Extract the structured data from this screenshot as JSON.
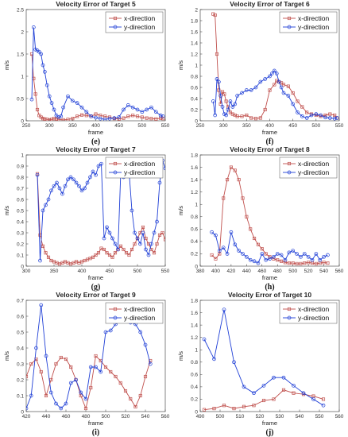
{
  "chart_data": [
    {
      "type": "line",
      "panel_label": "(e)",
      "title": "Velocity Error of Target 5",
      "xlabel": "frame",
      "ylabel": "m/s",
      "xlim": [
        250,
        550
      ],
      "ylim": [
        0,
        2.5
      ],
      "xticks": [
        250,
        300,
        350,
        400,
        450,
        500,
        550
      ],
      "yticks": [
        0,
        0.5,
        1,
        1.5,
        2,
        2.5
      ],
      "legend": "top-right",
      "series": [
        {
          "name": "x-direction",
          "color": "#c0504d",
          "marker": "square",
          "x": [
            262,
            266,
            270,
            274,
            278,
            282,
            286,
            290,
            295,
            300,
            305,
            310,
            315,
            320,
            330,
            340,
            350,
            360,
            370,
            380,
            390,
            400,
            410,
            420,
            430,
            440,
            450,
            460,
            470,
            480,
            490,
            500,
            510,
            520,
            530,
            540,
            545
          ],
          "y": [
            1.5,
            0.95,
            0.6,
            0.25,
            0.12,
            0.08,
            0.05,
            0.04,
            0.03,
            0.02,
            0.03,
            0.05,
            0.04,
            0.03,
            0.02,
            0.03,
            0.05,
            0.1,
            0.13,
            0.12,
            0.1,
            0.15,
            0.12,
            0.1,
            0.08,
            0.05,
            0.04,
            0.06,
            0.1,
            0.12,
            0.1,
            0.08,
            0.06,
            0.05,
            0.04,
            0.06,
            0.05
          ]
        },
        {
          "name": "y-direction",
          "color": "#1f3fd6",
          "marker": "circle",
          "x": [
            262,
            266,
            270,
            274,
            278,
            282,
            286,
            290,
            295,
            300,
            305,
            310,
            315,
            320,
            325,
            330,
            340,
            350,
            360,
            370,
            380,
            390,
            400,
            410,
            420,
            430,
            440,
            450,
            460,
            470,
            480,
            490,
            500,
            510,
            520,
            530,
            540,
            545
          ],
          "y": [
            0.48,
            2.1,
            1.6,
            1.58,
            1.55,
            1.5,
            1.25,
            1.1,
            0.8,
            0.55,
            0.4,
            0.25,
            0.12,
            0.08,
            0.1,
            0.3,
            0.55,
            0.45,
            0.4,
            0.3,
            0.2,
            0.1,
            0.07,
            0.05,
            0.03,
            0.05,
            0.06,
            0.08,
            0.25,
            0.35,
            0.3,
            0.25,
            0.2,
            0.25,
            0.3,
            0.2,
            0.12,
            0.1
          ]
        }
      ]
    },
    {
      "type": "line",
      "panel_label": "(f)",
      "title": "Velocity Error of Target 6",
      "xlabel": "frame",
      "ylabel": "m/s",
      "xlim": [
        250,
        550
      ],
      "ylim": [
        0,
        2
      ],
      "xticks": [
        250,
        300,
        350,
        400,
        450,
        500,
        550
      ],
      "yticks": [
        0,
        0.2,
        0.4,
        0.6,
        0.8,
        1,
        1.2,
        1.4,
        1.6,
        1.8,
        2
      ],
      "legend": "top-right",
      "series": [
        {
          "name": "x-direction",
          "color": "#c0504d",
          "marker": "square",
          "x": [
            278,
            282,
            286,
            290,
            294,
            298,
            302,
            306,
            310,
            315,
            320,
            325,
            330,
            340,
            350,
            360,
            370,
            380,
            390,
            400,
            410,
            415,
            420,
            425,
            430,
            440,
            450,
            460,
            470,
            480,
            490,
            500,
            510,
            520,
            530,
            540,
            545
          ],
          "y": [
            1.92,
            1.9,
            1.2,
            0.55,
            0.3,
            0.52,
            0.48,
            0.35,
            0.25,
            0.15,
            0.12,
            0.1,
            0.08,
            0.08,
            0.1,
            0.05,
            0.04,
            0.05,
            0.2,
            0.55,
            0.65,
            0.72,
            0.7,
            0.68,
            0.65,
            0.62,
            0.5,
            0.35,
            0.25,
            0.15,
            0.12,
            0.1,
            0.08,
            0.1,
            0.12,
            0.1,
            0.05
          ]
        },
        {
          "name": "y-direction",
          "color": "#1f3fd6",
          "marker": "circle",
          "x": [
            278,
            282,
            286,
            290,
            294,
            298,
            302,
            306,
            310,
            315,
            320,
            325,
            330,
            340,
            350,
            360,
            370,
            380,
            390,
            400,
            405,
            410,
            415,
            420,
            425,
            430,
            440,
            450,
            460,
            470,
            480,
            490,
            500,
            510,
            520,
            530,
            540,
            545
          ],
          "y": [
            0.35,
            0.1,
            0.75,
            0.7,
            0.45,
            0.25,
            0.12,
            0.1,
            0.2,
            0.35,
            0.25,
            0.3,
            0.45,
            0.5,
            0.55,
            0.55,
            0.6,
            0.7,
            0.75,
            0.8,
            0.85,
            0.9,
            0.85,
            0.7,
            0.6,
            0.5,
            0.45,
            0.3,
            0.15,
            0.08,
            0.05,
            0.1,
            0.12,
            0.1,
            0.06,
            0.05,
            0.04,
            0.05
          ]
        }
      ]
    },
    {
      "type": "line",
      "panel_label": "(g)",
      "title": "Velocity Error of Target 7",
      "xlabel": "frame",
      "ylabel": "m/s",
      "xlim": [
        300,
        550
      ],
      "ylim": [
        0,
        1
      ],
      "xticks": [
        300,
        350,
        400,
        450,
        500,
        550
      ],
      "yticks": [
        0,
        0.1,
        0.2,
        0.3,
        0.4,
        0.5,
        0.6,
        0.7,
        0.8,
        0.9,
        1
      ],
      "legend": "top-right",
      "series": [
        {
          "name": "x-direction",
          "color": "#c0504d",
          "marker": "square",
          "x": [
            320,
            325,
            330,
            335,
            340,
            345,
            350,
            355,
            360,
            365,
            370,
            375,
            380,
            385,
            390,
            395,
            400,
            405,
            410,
            415,
            420,
            425,
            430,
            435,
            440,
            445,
            450,
            455,
            460,
            465,
            470,
            475,
            480,
            485,
            490,
            495,
            500,
            505,
            510,
            515,
            520,
            525,
            530,
            535,
            540,
            545,
            550
          ],
          "y": [
            0.83,
            0.28,
            0.18,
            0.12,
            0.08,
            0.05,
            0.04,
            0.03,
            0.02,
            0.03,
            0.04,
            0.03,
            0.02,
            0.03,
            0.04,
            0.03,
            0.04,
            0.05,
            0.06,
            0.07,
            0.08,
            0.1,
            0.12,
            0.16,
            0.15,
            0.12,
            0.1,
            0.08,
            0.12,
            0.15,
            0.18,
            0.15,
            0.12,
            0.1,
            0.15,
            0.2,
            0.25,
            0.3,
            0.35,
            0.25,
            0.2,
            0.15,
            0.12,
            0.2,
            0.28,
            0.3,
            0.24
          ]
        },
        {
          "name": "y-direction",
          "color": "#1f3fd6",
          "marker": "circle",
          "x": [
            320,
            325,
            330,
            335,
            340,
            345,
            350,
            355,
            360,
            365,
            370,
            375,
            380,
            385,
            390,
            395,
            400,
            405,
            410,
            415,
            420,
            425,
            430,
            435,
            440,
            445,
            450,
            455,
            460,
            465,
            470,
            475,
            480,
            485,
            490,
            495,
            500,
            505,
            510,
            515,
            520,
            525,
            530,
            535,
            540,
            545,
            550
          ],
          "y": [
            0.82,
            0.05,
            0.5,
            0.55,
            0.6,
            0.68,
            0.72,
            0.75,
            0.7,
            0.65,
            0.72,
            0.78,
            0.8,
            0.78,
            0.75,
            0.72,
            0.68,
            0.7,
            0.75,
            0.8,
            0.85,
            0.82,
            0.9,
            0.92,
            0.25,
            0.35,
            0.3,
            0.25,
            0.2,
            0.15,
            0.85,
            0.8,
            0.9,
            0.85,
            0.5,
            0.3,
            0.25,
            0.2,
            0.3,
            0.15,
            0.1,
            0.2,
            0.3,
            0.4,
            0.75,
            0.95,
            0.88
          ]
        }
      ]
    },
    {
      "type": "line",
      "panel_label": "(h)",
      "title": "Velocity Error of Target 8",
      "xlabel": "frame",
      "ylabel": "m/s",
      "xlim": [
        380,
        560
      ],
      "ylim": [
        0,
        1.8
      ],
      "xticks": [
        380,
        400,
        420,
        440,
        460,
        480,
        500,
        520,
        540,
        560
      ],
      "yticks": [
        0,
        0.2,
        0.4,
        0.6,
        0.8,
        1,
        1.2,
        1.4,
        1.6,
        1.8
      ],
      "legend": "top-right",
      "series": [
        {
          "name": "x-direction",
          "color": "#c0504d",
          "marker": "square",
          "x": [
            395,
            400,
            405,
            410,
            415,
            420,
            425,
            430,
            435,
            440,
            445,
            450,
            455,
            460,
            465,
            470,
            475,
            480,
            485,
            490,
            495,
            500,
            505,
            510,
            515,
            520,
            525,
            530,
            535,
            540,
            545
          ],
          "y": [
            0.18,
            0.12,
            0.2,
            1.1,
            1.4,
            1.6,
            1.55,
            1.4,
            1.1,
            0.8,
            0.6,
            0.45,
            0.35,
            0.28,
            0.2,
            0.15,
            0.12,
            0.1,
            0.08,
            0.06,
            0.05,
            0.05,
            0.04,
            0.04,
            0.05,
            0.06,
            0.05,
            0.04,
            0.05,
            0.06,
            0.05
          ]
        },
        {
          "name": "y-direction",
          "color": "#1f3fd6",
          "marker": "circle",
          "x": [
            395,
            400,
            405,
            410,
            415,
            420,
            425,
            430,
            435,
            440,
            445,
            450,
            455,
            460,
            465,
            470,
            475,
            480,
            485,
            490,
            495,
            500,
            505,
            510,
            515,
            520,
            525,
            530,
            535,
            540,
            545
          ],
          "y": [
            0.55,
            0.5,
            0.25,
            0.3,
            0.2,
            0.55,
            0.35,
            0.25,
            0.2,
            0.15,
            0.1,
            0.08,
            0.05,
            0.2,
            0.1,
            0.12,
            0.15,
            0.2,
            0.18,
            0.1,
            0.22,
            0.25,
            0.2,
            0.15,
            0.2,
            0.15,
            0.1,
            0.2,
            0.1,
            0.15,
            0.18
          ]
        }
      ]
    },
    {
      "type": "line",
      "panel_label": "(i)",
      "title": "Velocity Error of Target 9",
      "xlabel": "frame",
      "ylabel": "m/s",
      "xlim": [
        420,
        560
      ],
      "ylim": [
        0,
        0.7
      ],
      "xticks": [
        420,
        440,
        460,
        480,
        500,
        520,
        540,
        560
      ],
      "yticks": [
        0,
        0.1,
        0.2,
        0.3,
        0.4,
        0.5,
        0.6,
        0.7
      ],
      "legend": "top-right",
      "series": [
        {
          "name": "x-direction",
          "color": "#c0504d",
          "marker": "square",
          "x": [
            420,
            425,
            430,
            435,
            440,
            445,
            450,
            455,
            460,
            465,
            470,
            475,
            480,
            485,
            490,
            495,
            500,
            505,
            510,
            515,
            520,
            525,
            530,
            535,
            540,
            545
          ],
          "y": [
            0.22,
            0.3,
            0.33,
            0.25,
            0.1,
            0.2,
            0.3,
            0.34,
            0.33,
            0.28,
            0.2,
            0.1,
            0.02,
            0.15,
            0.35,
            0.32,
            0.28,
            0.25,
            0.22,
            0.18,
            0.13,
            0.08,
            0.03,
            0.1,
            0.22,
            0.32
          ]
        },
        {
          "name": "y-direction",
          "color": "#1f3fd6",
          "marker": "circle",
          "x": [
            420,
            425,
            430,
            435,
            440,
            445,
            450,
            455,
            460,
            465,
            470,
            475,
            480,
            485,
            490,
            495,
            500,
            505,
            510,
            515,
            520,
            525,
            530,
            535,
            540,
            545
          ],
          "y": [
            0.02,
            0.1,
            0.4,
            0.67,
            0.35,
            0.12,
            0.05,
            0.02,
            0.05,
            0.18,
            0.2,
            0.12,
            0.08,
            0.28,
            0.28,
            0.25,
            0.5,
            0.51,
            0.55,
            0.57,
            0.57,
            0.56,
            0.55,
            0.5,
            0.42,
            0.3
          ]
        }
      ]
    },
    {
      "type": "line",
      "panel_label": "(j)",
      "title": "Velocity Error of Target 10",
      "xlabel": "frame",
      "ylabel": "m/s",
      "xlim": [
        490,
        560
      ],
      "ylim": [
        0,
        1.8
      ],
      "xticks": [
        490,
        500,
        510,
        520,
        530,
        540,
        550,
        560
      ],
      "yticks": [
        0,
        0.2,
        0.4,
        0.6,
        0.8,
        1,
        1.2,
        1.4,
        1.6,
        1.8
      ],
      "legend": "top-right",
      "series": [
        {
          "name": "x-direction",
          "color": "#c0504d",
          "marker": "square",
          "x": [
            492,
            497,
            502,
            507,
            512,
            517,
            522,
            527,
            532,
            537,
            542,
            547,
            552
          ],
          "y": [
            0.03,
            0.05,
            0.1,
            0.05,
            0.08,
            0.1,
            0.18,
            0.2,
            0.35,
            0.3,
            0.28,
            0.25,
            0.2
          ]
        },
        {
          "name": "y-direction",
          "color": "#1f3fd6",
          "marker": "circle",
          "x": [
            492,
            497,
            502,
            507,
            512,
            517,
            522,
            527,
            532,
            537,
            542,
            547,
            552
          ],
          "y": [
            1.17,
            0.85,
            1.65,
            0.8,
            0.4,
            0.3,
            0.42,
            0.55,
            0.55,
            0.42,
            0.3,
            0.2,
            0.1
          ]
        }
      ]
    }
  ]
}
